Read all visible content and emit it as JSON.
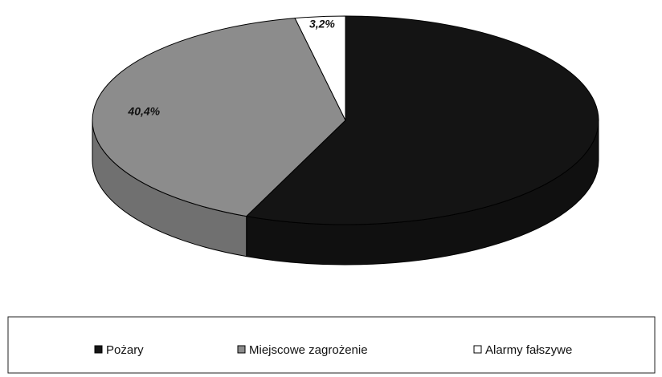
{
  "chart_data": {
    "type": "pie3d",
    "categories": [
      "Pożary",
      "Miejscowe zagrożenie",
      "Alarmy fałszywe"
    ],
    "values": [
      56.4,
      40.4,
      3.2
    ],
    "value_labels": [
      null,
      "40,4%",
      "3,2%"
    ],
    "colors": [
      "#141414",
      "#8c8c8c",
      "#ffffff"
    ],
    "legend": "bottom"
  }
}
